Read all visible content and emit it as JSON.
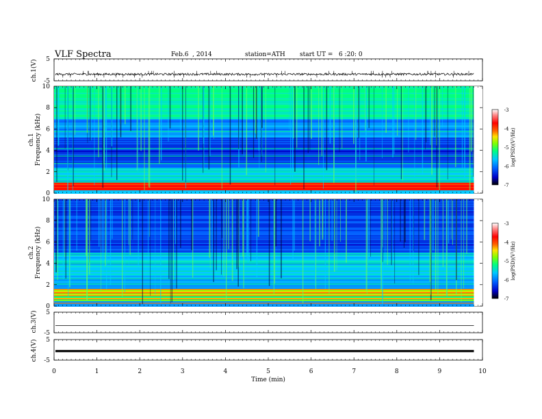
{
  "header": {
    "title": "VLF Spectra",
    "date": "Feb.6  , 2014",
    "station": "station=ATH",
    "start_ut": "start UT =   6 :20: 0"
  },
  "chart_data": [
    {
      "type": "line",
      "panel": "ch1",
      "ylabel": "ch.1(V)",
      "yticks": [
        "5",
        "-5"
      ],
      "ylim": [
        -5,
        5
      ],
      "xlim": [
        0,
        10
      ],
      "baseline_v": -2.0,
      "amplitude_v": 0.5,
      "spike_v": 1.5
    },
    {
      "type": "heatmap",
      "panel": "ch1 spectrogram",
      "ylabel_channel": "ch.1",
      "ylabel": "Frequency (kHz)",
      "yticks": [
        "0",
        "2",
        "4",
        "6",
        "8",
        "10"
      ],
      "ylim": [
        0,
        10
      ],
      "xlim": [
        0,
        9.8
      ],
      "colorbar": {
        "label": "log(PSD)(V²/Hz)",
        "ticks": [
          "-3",
          "-4",
          "-5",
          "-6",
          "-7"
        ],
        "range": [
          -7,
          -3
        ],
        "colors": [
          "#000000",
          "#0000c8",
          "#0060ff",
          "#00c8ff",
          "#00ff80",
          "#80ff00",
          "#ffe000",
          "#ff6000",
          "#ff0000",
          "#ff8080",
          "#ffffff"
        ]
      },
      "features": "strong bands at 0.3–0.9 kHz; tones near 2.1, 2.8, 3.5 kHz; vertical sferic streaks; red lower band in 0.3–0.6 kHz"
    },
    {
      "type": "heatmap",
      "panel": "ch2 spectrogram",
      "ylabel_channel": "ch.2",
      "ylabel": "Frequency (kHz)",
      "yticks": [
        "0",
        "2",
        "4",
        "6",
        "8",
        "10"
      ],
      "ylim": [
        0,
        10
      ],
      "xlim": [
        0,
        9.8
      ],
      "colorbar": {
        "label": "log(PSD)(V²/Hz)",
        "ticks": [
          "-3",
          "-4",
          "-5",
          "-6",
          "-7"
        ],
        "range": [
          -7,
          -3
        ]
      },
      "features": "orange/red tones near 0.6–1.6 kHz; banded structure; vertical sferic streaks"
    },
    {
      "type": "line",
      "panel": "ch3",
      "ylabel": "ch.3(V)",
      "yticks": [
        "5",
        "-5"
      ],
      "ylim": [
        -5,
        5
      ],
      "xlim": [
        0,
        10
      ],
      "level_v": -1.5
    },
    {
      "type": "line",
      "panel": "ch4",
      "ylabel": "ch.4(V)",
      "yticks": [
        "5",
        "-5"
      ],
      "ylim": [
        -5,
        5
      ],
      "xlim": [
        0,
        10
      ],
      "level_v": -0.6
    }
  ],
  "xaxis": {
    "label": "Time (min)",
    "ticks": [
      "0",
      "1",
      "2",
      "3",
      "4",
      "5",
      "6",
      "7",
      "8",
      "9",
      "10"
    ],
    "range": [
      0,
      10
    ]
  }
}
